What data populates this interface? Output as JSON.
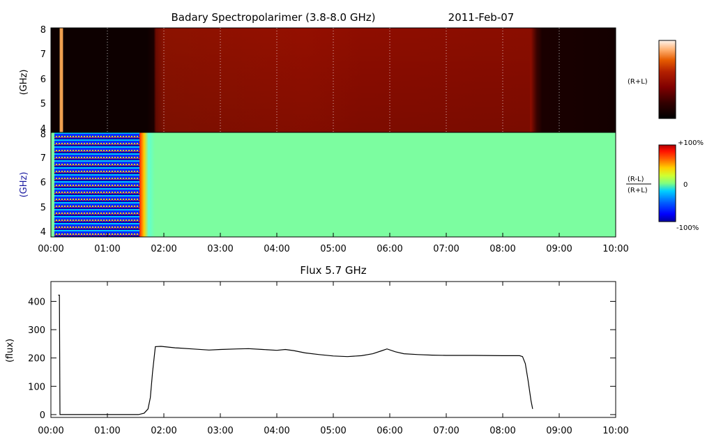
{
  "title": {
    "instrument": "Badary Spectropolarimer (3.8-8.0 GHz)",
    "date": "2011-Feb-07"
  },
  "panels": {
    "intensity": {
      "ylabel": "(GHz)",
      "yticks": [
        "4",
        "5",
        "6",
        "7",
        "8"
      ],
      "side_label": "(R+L)"
    },
    "polarization": {
      "ylabel": "(GHz)",
      "yticks": [
        "4",
        "5",
        "6",
        "7",
        "8"
      ],
      "side_label_top": "(R-L)",
      "side_label_bottom": "(R+L)"
    },
    "flux": {
      "title": "Flux 5.7 GHz",
      "ylabel": "(flux)"
    }
  },
  "xticks": [
    "00:00",
    "01:00",
    "02:00",
    "03:00",
    "04:00",
    "05:00",
    "06:00",
    "07:00",
    "08:00",
    "09:00",
    "10:00"
  ],
  "colorbars": {
    "intensity": {
      "colors": [
        "#000000",
        "#1a0000",
        "#330000",
        "#4d0000",
        "#660000",
        "#800000",
        "#991000",
        "#b32000",
        "#cc3a00",
        "#e65c00",
        "#ff8a20",
        "#ffb070",
        "#ffd8b8",
        "#fff5ee"
      ]
    },
    "polarization": {
      "top_label": "+100%",
      "mid_label": "0",
      "bottom_label": "-100%",
      "colors": [
        "#0000a0",
        "#0000ff",
        "#0060ff",
        "#00b0ff",
        "#40f0d0",
        "#80ff80",
        "#c0ff40",
        "#ffe000",
        "#ff8000",
        "#ff2000",
        "#c00000"
      ]
    }
  },
  "chart_data": {
    "type": "line",
    "title": "Flux 5.7 GHz",
    "xlabel": "",
    "ylabel": "(flux)",
    "xlim": [
      0,
      10
    ],
    "ylim": [
      -10,
      470
    ],
    "yticks": [
      0,
      100,
      200,
      300,
      400
    ],
    "series": [
      {
        "x": [
          0.13,
          0.15,
          0.16,
          1.55,
          1.65,
          1.72,
          1.76,
          1.8,
          1.85,
          1.95,
          2.2,
          2.5,
          2.8,
          3.0,
          3.3,
          3.5,
          3.75,
          4.0,
          4.15,
          4.3,
          4.5,
          4.75,
          5.0,
          5.25,
          5.5,
          5.7,
          5.85,
          5.95,
          6.1,
          6.25,
          6.5,
          6.75,
          7.0,
          7.5,
          8.0,
          8.3,
          8.35,
          8.4,
          8.45,
          8.5,
          8.53
        ],
        "values": [
          422,
          422,
          0,
          0,
          5,
          20,
          60,
          150,
          240,
          241,
          236,
          232,
          228,
          230,
          232,
          233,
          230,
          227,
          230,
          226,
          218,
          212,
          207,
          205,
          208,
          215,
          225,
          232,
          222,
          215,
          212,
          210,
          209,
          209,
          208,
          208,
          205,
          180,
          120,
          50,
          20
        ]
      }
    ]
  }
}
